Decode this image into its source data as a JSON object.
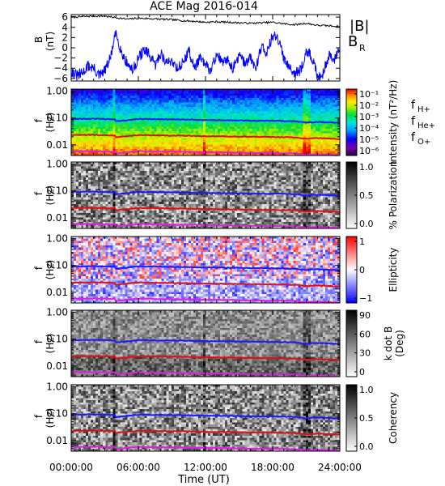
{
  "figure": {
    "title": "ACE Mag 2016-014",
    "x_ticks": [
      "00:00:00",
      "06:00:00",
      "12:00:00",
      "18:00:00",
      "24:00:00"
    ],
    "x_label": "Time (UT)",
    "f_label": "f",
    "hz_label": "(Hz)"
  },
  "chart_data": [
    {
      "type": "line",
      "panel": "magnetic-field",
      "ylabel_top": "B",
      "ylabel_units": "(nT)",
      "ylim": [
        -6.5,
        6.5
      ],
      "x_range_hours": [
        0,
        24
      ],
      "y_ticks": [
        "6",
        "4",
        "2",
        "0",
        "−2",
        "−4",
        "−6"
      ],
      "y_tick_values": [
        6,
        4,
        2,
        0,
        -2,
        -4,
        -6
      ],
      "legend": [
        "|B|",
        "B",
        "R"
      ],
      "series": [
        {
          "name": "|B|",
          "color": "#000000",
          "x": [
            0,
            1,
            2,
            3,
            4,
            5,
            6,
            7,
            8,
            9,
            10,
            11,
            12,
            13,
            14,
            15,
            16,
            17,
            18,
            19,
            20,
            21,
            22,
            23,
            24
          ],
          "values": [
            6.0,
            6.1,
            6.2,
            6.2,
            5.9,
            5.6,
            5.8,
            5.7,
            5.6,
            5.5,
            5.3,
            5.2,
            5.0,
            5.1,
            5.0,
            4.9,
            4.8,
            4.9,
            5.0,
            4.7,
            4.5,
            4.8,
            4.4,
            4.3,
            4.2
          ]
        },
        {
          "name": "B R",
          "color": "#0000ff",
          "x": [
            0,
            0.5,
            1,
            1.5,
            2,
            2.5,
            3,
            3.5,
            4,
            4.5,
            5,
            5.5,
            6,
            6.5,
            7,
            7.5,
            8,
            8.5,
            9,
            9.5,
            10,
            10.5,
            11,
            11.5,
            12,
            12.5,
            13,
            13.5,
            14,
            14.5,
            15,
            15.5,
            16,
            16.5,
            17,
            17.5,
            18,
            18.5,
            19,
            19.5,
            20,
            20.5,
            21,
            21.5,
            22,
            22.5,
            23,
            23.5,
            24
          ],
          "values": [
            -4.5,
            -5.5,
            -5.0,
            -3.5,
            -4.0,
            -5.5,
            -4.5,
            -2.0,
            3.0,
            -1.0,
            -3.0,
            -4.5,
            -2.0,
            -0.5,
            -1.5,
            -3.5,
            -1.0,
            -3.0,
            -2.5,
            -4.0,
            -3.0,
            -0.5,
            -4.0,
            -2.0,
            -3.5,
            -4.5,
            -1.0,
            -3.0,
            -2.5,
            -4.0,
            -1.5,
            -3.0,
            -2.0,
            -4.0,
            0.5,
            -1.0,
            2.5,
            1.5,
            -2.0,
            -3.5,
            -5.0,
            -4.5,
            -0.5,
            -2.0,
            -5.5,
            -5.0,
            -1.5,
            -2.5,
            0.5
          ]
        }
      ]
    },
    {
      "type": "heatmap",
      "panel": "intensity",
      "ylim_log": [
        0.004,
        1.2
      ],
      "y_ticks": [
        "1.00",
        "0.10",
        "0.01"
      ],
      "y_tick_values": [
        1.0,
        0.1,
        0.01
      ],
      "colorbar": {
        "label": "Intensity (nT²/Hz)",
        "ticks": [
          "10⁻¹",
          "10⁻²",
          "10⁻³",
          "10⁻⁴",
          "10⁻⁵",
          "10⁻⁶"
        ],
        "colormap": "rainbow"
      },
      "legend": [
        {
          "base": "f",
          "sub": "H+",
          "color": "#1a1aff"
        },
        {
          "base": "f",
          "sub": "He+",
          "color": "#e01010"
        },
        {
          "base": "f",
          "sub": "O+",
          "color": "#e020e0"
        }
      ]
    },
    {
      "type": "heatmap",
      "panel": "polarization",
      "ylim_log": [
        0.004,
        1.2
      ],
      "y_ticks": [
        "1.00",
        "0.10",
        "0.01"
      ],
      "y_tick_values": [
        1.0,
        0.1,
        0.01
      ],
      "colorbar": {
        "label": "% Polarization",
        "ticks": [
          "1.0",
          "0.5",
          "0.0"
        ],
        "colormap": "gray"
      }
    },
    {
      "type": "heatmap",
      "panel": "ellipticity",
      "ylim_log": [
        0.004,
        1.2
      ],
      "y_ticks": [
        "1.00",
        "0.10",
        "0.01"
      ],
      "y_tick_values": [
        1.0,
        0.1,
        0.01
      ],
      "colorbar": {
        "label": "Ellipticity",
        "ticks": [
          "1",
          "0",
          "−1"
        ],
        "colormap": "blue-white-red"
      }
    },
    {
      "type": "heatmap",
      "panel": "k-dot-b",
      "ylim_log": [
        0.004,
        1.2
      ],
      "y_ticks": [
        "1.00",
        "0.10",
        "0.01"
      ],
      "y_tick_values": [
        1.0,
        0.1,
        0.01
      ],
      "colorbar": {
        "label": "k dot B",
        "label2": "(Deg)",
        "ticks": [
          "90",
          "60",
          "30",
          "0"
        ],
        "colormap": "gray"
      }
    },
    {
      "type": "heatmap",
      "panel": "coherency",
      "ylim_log": [
        0.004,
        1.2
      ],
      "y_ticks": [
        "1.00",
        "0.10",
        "0.01"
      ],
      "y_tick_values": [
        1.0,
        0.1,
        0.01
      ],
      "colorbar": {
        "label": "Coherency",
        "ticks": [
          "1.0",
          "0.5",
          "0.0"
        ],
        "colormap": "gray"
      }
    }
  ],
  "gyrofrequencies": {
    "x": [
      0,
      2,
      3.9,
      4,
      6,
      8,
      10,
      12,
      14,
      16,
      18,
      20,
      21,
      22,
      24
    ],
    "H+": [
      0.092,
      0.094,
      0.09,
      0.075,
      0.092,
      0.09,
      0.088,
      0.084,
      0.083,
      0.08,
      0.079,
      0.076,
      0.068,
      0.072,
      0.066
    ],
    "He+": [
      0.023,
      0.0235,
      0.0225,
      0.019,
      0.023,
      0.0225,
      0.022,
      0.021,
      0.0207,
      0.02,
      0.0197,
      0.019,
      0.017,
      0.018,
      0.0165
    ],
    "O+": [
      0.0058,
      0.0059,
      0.0056,
      0.0047,
      0.0058,
      0.0056,
      0.0055,
      0.0053,
      0.0052,
      0.005,
      0.0049,
      0.0048,
      0.0043,
      0.0045,
      0.0041
    ]
  }
}
